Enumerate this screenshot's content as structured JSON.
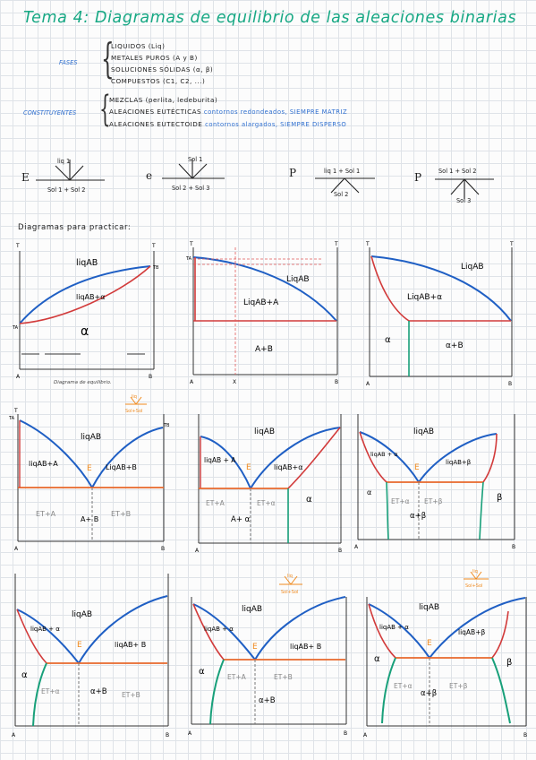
{
  "title": "Tema 4: Diagramas de equilibrio de las aleaciones binarias",
  "fases": {
    "label": "FASES",
    "items": [
      "LIQUIDOS (Liq)",
      "METALES PUROS (A y B)",
      "SOLUCIONES SÓLIDAS (α, β)",
      "COMPUESTOS (C1, C2, ...)"
    ]
  },
  "constituyentes": {
    "label": "CONSTITUYENTES",
    "items": [
      {
        "text": "MEZCLAS (perlita, ledeburita)",
        "note": ""
      },
      {
        "text": "ALEACIONES EUTÉCTICAS",
        "note": "contornos redondeados, SIEMPRE MATRIZ"
      },
      {
        "text": "ALEACIONES EUTECTOIDE",
        "note": "contornos alargados, SIEMPRE DISPERSO"
      }
    ]
  },
  "reactions": [
    {
      "letter": "E",
      "top": "liq 1",
      "bottom": "Sol 1 + Sol 2"
    },
    {
      "letter": "e",
      "top": "Sol 1",
      "bottom": "Sol 2 + Sol 3"
    },
    {
      "letter": "P",
      "top": "liq 1 + Sol 1",
      "bottom": "Sol 2"
    },
    {
      "letter": "P",
      "top": "Sol 1 + Sol 2",
      "bottom": "Sol 3"
    }
  ],
  "practice_title": "Diagramas para practicar:",
  "axes": {
    "t": "T",
    "a": "A",
    "b": "B",
    "x": "X",
    "ta": "TA",
    "tb": "TB"
  },
  "d1": {
    "liq": "liqAB",
    "mix": "liqAB+α",
    "alpha": "α",
    "caption": "Diagrama de equilibrio."
  },
  "d2": {
    "liq": "LiqAB",
    "mix": "LiqAB+A",
    "solid": "A+B"
  },
  "d3": {
    "liq": "LiqAB",
    "mix": "LiqAB+α",
    "alpha": "α",
    "solid": "α+B"
  },
  "d4": {
    "liq": "liqAB",
    "left": "liqAB+A",
    "right": "LiqAB+B",
    "e": "E",
    "et_a": "ET+A",
    "ab": "A+ B",
    "et_b": "ET+B",
    "sticker_top": "liq",
    "sticker_bottom": "Sol+Sol"
  },
  "d5": {
    "liq": "liqAB",
    "left": "liqAB + A",
    "right": "liqAB+α",
    "e": "E",
    "et_a": "ET+A",
    "et_alpha": "ET+α",
    "a_alpha": "A+ α",
    "alpha": "α"
  },
  "d6": {
    "liq": "liqAB",
    "left": "liqAB + α",
    "right": "liqAB+β",
    "e": "E",
    "alpha": "α",
    "et_alpha": "ET+α",
    "et_beta": "ET+β",
    "ab": "α+β",
    "beta": "β"
  },
  "d7": {
    "liq": "liqAB",
    "left": "liqAB + α",
    "right": "liqAB+ B",
    "e": "E",
    "alpha": "α",
    "et_alpha": "ET+α",
    "ab": "α+B",
    "et_b": "ET+B"
  },
  "d8": {
    "liq": "liqAB",
    "left": "liqAB + α",
    "right": "liqAB+ B",
    "e": "E",
    "alpha": "α",
    "et_a": "ET+A",
    "et_b": "ET+B",
    "ab": "α+B",
    "sticker_top": "liq",
    "sticker_bottom": "Sol+Sol"
  },
  "d9": {
    "liq": "liqAB",
    "left": "liqAB + α",
    "right": "liqAB+β",
    "e": "E",
    "alpha": "α",
    "et_alpha": "ET+α",
    "et_beta": "ET+β",
    "ab": "α+β",
    "beta": "β",
    "sticker_top": "liq",
    "sticker_bottom": "Sol+Sol"
  }
}
